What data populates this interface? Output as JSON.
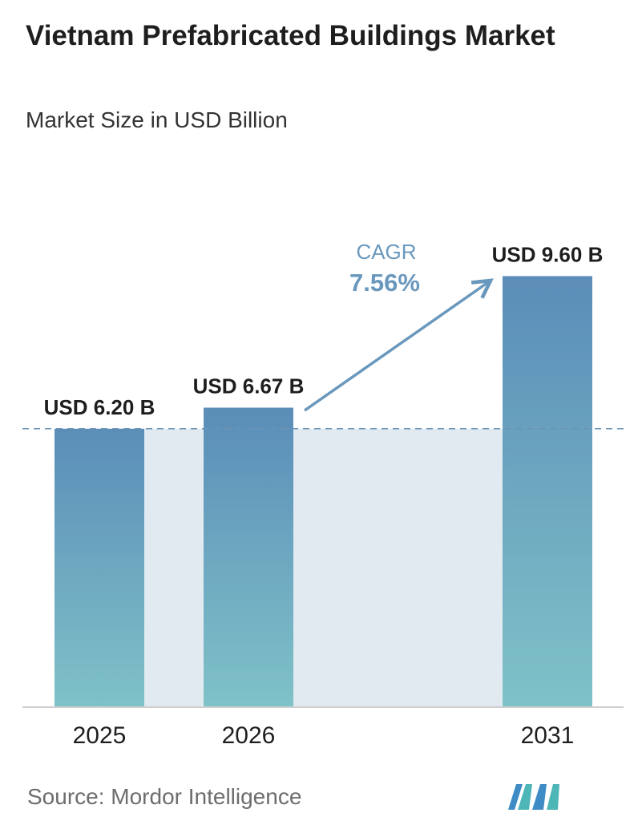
{
  "title": "Vietnam Prefabricated Buildings Market",
  "subtitle": "Market Size in USD Billion",
  "source": "Source:  Mordor Intelligence",
  "logo_icon": "mordor-intelligence-logo-icon",
  "colors": {
    "bar_top": "#5b8db8",
    "bar_bottom": "#7fc2c8",
    "band": "#e1e9f1",
    "arrow": "#6a98bd",
    "cagr_text": "#6a98bd",
    "dashed_line": "#6b93b4"
  },
  "cagr": {
    "label": "CAGR",
    "value": "7.56%"
  },
  "chart_data": {
    "type": "bar",
    "title": "Vietnam Prefabricated Buildings Market",
    "subtitle": "Market Size in USD Billion",
    "categories": [
      "2025",
      "2026",
      "2031"
    ],
    "values": [
      6.2,
      6.67,
      9.6
    ],
    "value_labels": [
      "USD 6.20 B",
      "USD 6.67 B",
      "USD 9.60 B"
    ],
    "unit": "USD Billion",
    "cagr": "7.56%",
    "ylim": [
      0,
      10
    ],
    "grid": false,
    "legend": "none",
    "reference_line_value": 6.2
  }
}
